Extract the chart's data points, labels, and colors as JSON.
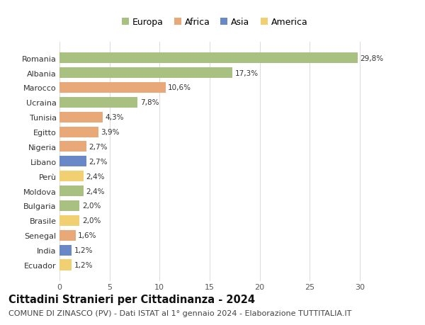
{
  "countries": [
    "Romania",
    "Albania",
    "Marocco",
    "Ucraina",
    "Tunisia",
    "Egitto",
    "Nigeria",
    "Libano",
    "Perù",
    "Moldova",
    "Bulgaria",
    "Brasile",
    "Senegal",
    "India",
    "Ecuador"
  ],
  "values": [
    29.8,
    17.3,
    10.6,
    7.8,
    4.3,
    3.9,
    2.7,
    2.7,
    2.4,
    2.4,
    2.0,
    2.0,
    1.6,
    1.2,
    1.2
  ],
  "labels": [
    "29,8%",
    "17,3%",
    "10,6%",
    "7,8%",
    "4,3%",
    "3,9%",
    "2,7%",
    "2,7%",
    "2,4%",
    "2,4%",
    "2,0%",
    "2,0%",
    "1,6%",
    "1,2%",
    "1,2%"
  ],
  "continents": [
    "Europa",
    "Europa",
    "Africa",
    "Europa",
    "Africa",
    "Africa",
    "Africa",
    "Asia",
    "America",
    "Europa",
    "Europa",
    "America",
    "Africa",
    "Asia",
    "America"
  ],
  "colors": {
    "Europa": "#a8c080",
    "Africa": "#e8a878",
    "Asia": "#6888c8",
    "America": "#f0d070"
  },
  "legend_order": [
    "Europa",
    "Africa",
    "Asia",
    "America"
  ],
  "xlim": [
    0,
    31
  ],
  "xticks": [
    0,
    5,
    10,
    15,
    20,
    25,
    30
  ],
  "title": "Cittadini Stranieri per Cittadinanza - 2024",
  "subtitle": "COMUNE DI ZINASCO (PV) - Dati ISTAT al 1° gennaio 2024 - Elaborazione TUTTITALIA.IT",
  "title_fontsize": 10.5,
  "subtitle_fontsize": 8,
  "label_fontsize": 7.5,
  "tick_fontsize": 8,
  "legend_fontsize": 9,
  "background_color": "#ffffff",
  "grid_color": "#dddddd"
}
